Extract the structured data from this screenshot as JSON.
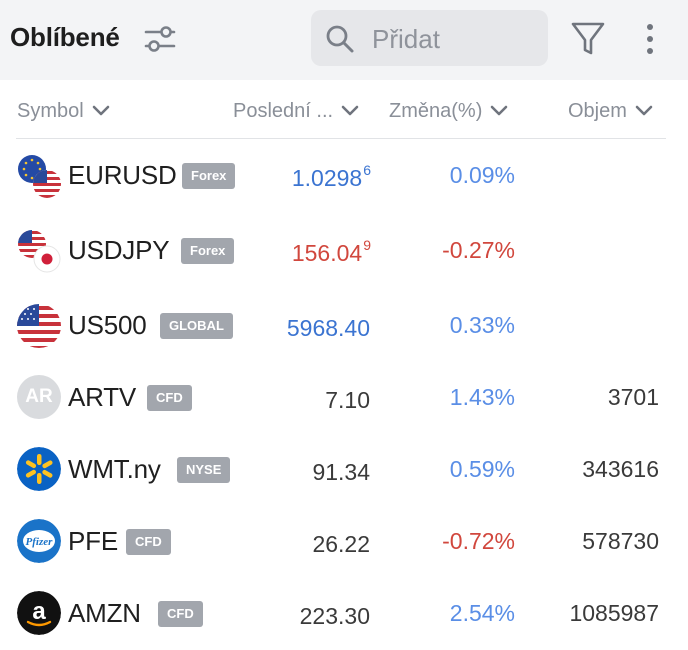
{
  "header": {
    "title": "Oblíbené",
    "search_placeholder": "Přidat"
  },
  "columns": {
    "symbol": "Symbol",
    "last": "Poslední ...",
    "change": "Změna(%)",
    "volume": "Objem"
  },
  "rows": [
    {
      "symbol": "EURUSD",
      "badge": "Forex",
      "last": "1.0298",
      "last_sup": "6",
      "change": "0.09%",
      "volume": "",
      "logo": "eu-us-flag-icon"
    },
    {
      "symbol": "USDJPY",
      "badge": "Forex",
      "last": "156.04",
      "last_sup": "9",
      "change": "-0.27%",
      "volume": "",
      "logo": "us-jp-flag-icon"
    },
    {
      "symbol": "US500",
      "badge": "GLOBAL",
      "last": "5968.40",
      "last_sup": "",
      "change": "0.33%",
      "volume": "",
      "logo": "us-flag-icon"
    },
    {
      "symbol": "ARTV",
      "badge": "CFD",
      "last": "7.10",
      "last_sup": "",
      "change": "1.43%",
      "volume": "3701",
      "logo_text": "AR"
    },
    {
      "symbol": "WMT.ny",
      "badge": "NYSE",
      "last": "91.34",
      "last_sup": "",
      "change": "0.59%",
      "volume": "343616",
      "logo": "walmart-icon"
    },
    {
      "symbol": "PFE",
      "badge": "CFD",
      "last": "26.22",
      "last_sup": "",
      "change": "-0.72%",
      "volume": "578730",
      "logo": "pfizer-icon",
      "logo_text": "Pfizer"
    },
    {
      "symbol": "AMZN",
      "badge": "CFD",
      "last": "223.30",
      "last_sup": "",
      "change": "2.54%",
      "volume": "1085987",
      "logo": "amazon-icon",
      "logo_text": "a"
    }
  ],
  "colors": {
    "up_price": "#3b74d1",
    "down_price": "#d1473d",
    "up_change": "#5a8ee6",
    "badge": "#a2a6ad"
  }
}
